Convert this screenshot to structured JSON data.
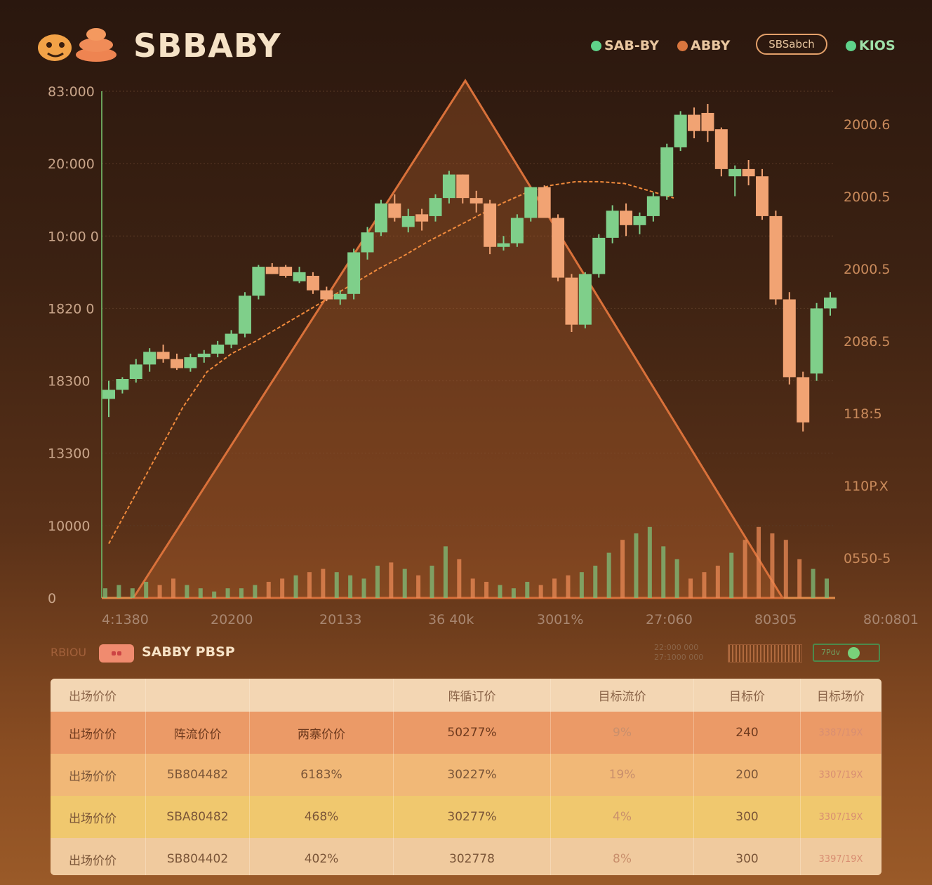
{
  "header": {
    "brand": "SBBABY",
    "legend": [
      {
        "label": "SAB-BY",
        "color": "#5fd28a"
      },
      {
        "label": "ABBY",
        "color": "#d9763e"
      }
    ],
    "button_label": "SBSabch",
    "status_label": "KIOS",
    "status_color": "#5fd28a"
  },
  "chart_data": {
    "type": "candlestick",
    "y_axis": {
      "tick_labels": [
        "83:000",
        "20:000",
        "10:00 0",
        "1820 0",
        "18300",
        "13300",
        "10000",
        "0"
      ]
    },
    "right_axis": {
      "tick_labels": [
        "2000.6",
        "2000.5",
        "2000.5",
        "2086.5",
        "118:5",
        "110P.X",
        "0550-5"
      ]
    },
    "x_axis": {
      "tick_labels": [
        "4:1380",
        "20200",
        "20133",
        "36 40k",
        "3001%",
        "27:060",
        "80305",
        "80:0801"
      ]
    },
    "colors": {
      "up": "#7fcf8a",
      "down": "#f1a373",
      "ma": "#f08a3c",
      "triangle": "#d9713a"
    },
    "candles": [
      {
        "o": 11000,
        "h": 12000,
        "l": 10000,
        "c": 11500,
        "up": true
      },
      {
        "o": 11500,
        "h": 12200,
        "l": 11300,
        "c": 12100,
        "up": true
      },
      {
        "o": 12100,
        "h": 13200,
        "l": 11900,
        "c": 12900,
        "up": true
      },
      {
        "o": 12900,
        "h": 13800,
        "l": 12500,
        "c": 13600,
        "up": true
      },
      {
        "o": 13600,
        "h": 14000,
        "l": 13000,
        "c": 13200,
        "up": false
      },
      {
        "o": 13200,
        "h": 13500,
        "l": 12600,
        "c": 12700,
        "up": false
      },
      {
        "o": 12700,
        "h": 13500,
        "l": 12500,
        "c": 13300,
        "up": true
      },
      {
        "o": 13300,
        "h": 13700,
        "l": 13000,
        "c": 13500,
        "up": true
      },
      {
        "o": 13500,
        "h": 14200,
        "l": 13300,
        "c": 14000,
        "up": true
      },
      {
        "o": 14000,
        "h": 14800,
        "l": 13800,
        "c": 14600,
        "up": true
      },
      {
        "o": 14600,
        "h": 16900,
        "l": 14400,
        "c": 16700,
        "up": true
      },
      {
        "o": 16700,
        "h": 18400,
        "l": 16500,
        "c": 18300,
        "up": true
      },
      {
        "o": 18300,
        "h": 18500,
        "l": 17900,
        "c": 17900,
        "up": false
      },
      {
        "o": 18300,
        "h": 18400,
        "l": 17700,
        "c": 17800,
        "up": false
      },
      {
        "o": 18000,
        "h": 18300,
        "l": 17400,
        "c": 17500,
        "up": true
      },
      {
        "o": 17800,
        "h": 18000,
        "l": 16800,
        "c": 17000,
        "up": false
      },
      {
        "o": 17000,
        "h": 17200,
        "l": 16400,
        "c": 16500,
        "up": false
      },
      {
        "o": 16500,
        "h": 17000,
        "l": 16200,
        "c": 16800,
        "up": true
      },
      {
        "o": 16800,
        "h": 19300,
        "l": 16500,
        "c": 19100,
        "up": true
      },
      {
        "o": 19100,
        "h": 20500,
        "l": 18700,
        "c": 20200,
        "up": true
      },
      {
        "o": 20200,
        "h": 22000,
        "l": 20000,
        "c": 21800,
        "up": true
      },
      {
        "o": 21800,
        "h": 22300,
        "l": 20800,
        "c": 21000,
        "up": false
      },
      {
        "o": 20500,
        "h": 21500,
        "l": 20200,
        "c": 21100,
        "up": true
      },
      {
        "o": 20800,
        "h": 21500,
        "l": 20300,
        "c": 21200,
        "up": false
      },
      {
        "o": 21100,
        "h": 22300,
        "l": 20800,
        "c": 22100,
        "up": true
      },
      {
        "o": 22100,
        "h": 23600,
        "l": 21800,
        "c": 23400,
        "up": true
      },
      {
        "o": 23400,
        "h": 23400,
        "l": 21800,
        "c": 22100,
        "up": false
      },
      {
        "o": 22100,
        "h": 22500,
        "l": 21300,
        "c": 21800,
        "up": false
      },
      {
        "o": 21800,
        "h": 22000,
        "l": 19000,
        "c": 19400,
        "up": false
      },
      {
        "o": 19400,
        "h": 20000,
        "l": 19200,
        "c": 19600,
        "up": true
      },
      {
        "o": 19600,
        "h": 21200,
        "l": 19400,
        "c": 21000,
        "up": true
      },
      {
        "o": 21000,
        "h": 22700,
        "l": 20800,
        "c": 22700,
        "up": true
      },
      {
        "o": 22700,
        "h": 22800,
        "l": 21000,
        "c": 21000,
        "up": false
      },
      {
        "o": 21000,
        "h": 21200,
        "l": 17500,
        "c": 17700,
        "up": false
      },
      {
        "o": 17700,
        "h": 17900,
        "l": 14700,
        "c": 15100,
        "up": false
      },
      {
        "o": 15100,
        "h": 18000,
        "l": 14900,
        "c": 17900,
        "up": true
      },
      {
        "o": 17900,
        "h": 20100,
        "l": 17700,
        "c": 19900,
        "up": true
      },
      {
        "o": 19900,
        "h": 21700,
        "l": 19600,
        "c": 21400,
        "up": true
      },
      {
        "o": 21400,
        "h": 21800,
        "l": 20000,
        "c": 20600,
        "up": false
      },
      {
        "o": 20600,
        "h": 21300,
        "l": 20100,
        "c": 21100,
        "up": true
      },
      {
        "o": 21100,
        "h": 22400,
        "l": 20800,
        "c": 22200,
        "up": true
      },
      {
        "o": 22200,
        "h": 25100,
        "l": 22000,
        "c": 24900,
        "up": true
      },
      {
        "o": 24900,
        "h": 26900,
        "l": 24700,
        "c": 26700,
        "up": true
      },
      {
        "o": 26700,
        "h": 27100,
        "l": 25400,
        "c": 25800,
        "up": false
      },
      {
        "o": 25800,
        "h": 27300,
        "l": 25200,
        "c": 26800,
        "up": false
      },
      {
        "o": 25900,
        "h": 26000,
        "l": 23300,
        "c": 23700,
        "up": false
      },
      {
        "o": 23300,
        "h": 23900,
        "l": 22200,
        "c": 23700,
        "up": true
      },
      {
        "o": 23700,
        "h": 24200,
        "l": 22800,
        "c": 23300,
        "up": false
      },
      {
        "o": 23300,
        "h": 23700,
        "l": 20900,
        "c": 21100,
        "up": false
      },
      {
        "o": 21100,
        "h": 21400,
        "l": 16200,
        "c": 16500,
        "up": false
      },
      {
        "o": 16500,
        "h": 16900,
        "l": 11800,
        "c": 12200,
        "up": false
      },
      {
        "o": 12200,
        "h": 12500,
        "l": 9200,
        "c": 9700,
        "up": false
      },
      {
        "o": 12400,
        "h": 16300,
        "l": 12000,
        "c": 16000,
        "up": true
      },
      {
        "o": 16000,
        "h": 16900,
        "l": 15600,
        "c": 16600,
        "up": true
      }
    ],
    "volume": [
      3,
      4,
      3,
      5,
      4,
      6,
      4,
      3,
      2,
      3,
      3,
      4,
      5,
      6,
      7,
      8,
      9,
      8,
      7,
      6,
      10,
      11,
      9,
      7,
      10,
      16,
      12,
      6,
      5,
      4,
      3,
      5,
      4,
      6,
      7,
      8,
      10,
      14,
      18,
      20,
      22,
      16,
      12,
      6,
      8,
      10,
      14,
      18,
      22,
      20,
      18,
      12,
      9,
      6
    ],
    "ma": [
      3000,
      5500,
      8000,
      10500,
      12500,
      13500,
      14200,
      15000,
      15800,
      16600,
      17400,
      18200,
      18900,
      19700,
      20400,
      21100,
      21800,
      22400,
      22800,
      23000,
      23000,
      22900,
      22500,
      22100
    ]
  },
  "controls": {
    "left_small": "RBIOU",
    "section_title": "SABBY PBSP",
    "mini_line1": "22:000 000",
    "mini_line2": "27:1000 000",
    "toggle_label": "7Pdv"
  },
  "table": {
    "headers": [
      "出场价价",
      "",
      "",
      "阵循订价",
      "目标流价",
      "目标价",
      "目标场价"
    ],
    "rows": [
      [
        "出场价价",
        "阵流价价",
        "两寨价价",
        "50277%",
        "9%",
        "240",
        "3387/19X"
      ],
      [
        "出场价价",
        "5B804482",
        "6183%",
        "30227%",
        "19%",
        "200",
        "3307/19X"
      ],
      [
        "出场价价",
        "SBA80482",
        "468%",
        "30277%",
        "4%",
        "300",
        "3307/19X"
      ],
      [
        "出场价价",
        "SB804402",
        "402%",
        "302778",
        "8%",
        "300",
        "3397/19X"
      ]
    ]
  }
}
